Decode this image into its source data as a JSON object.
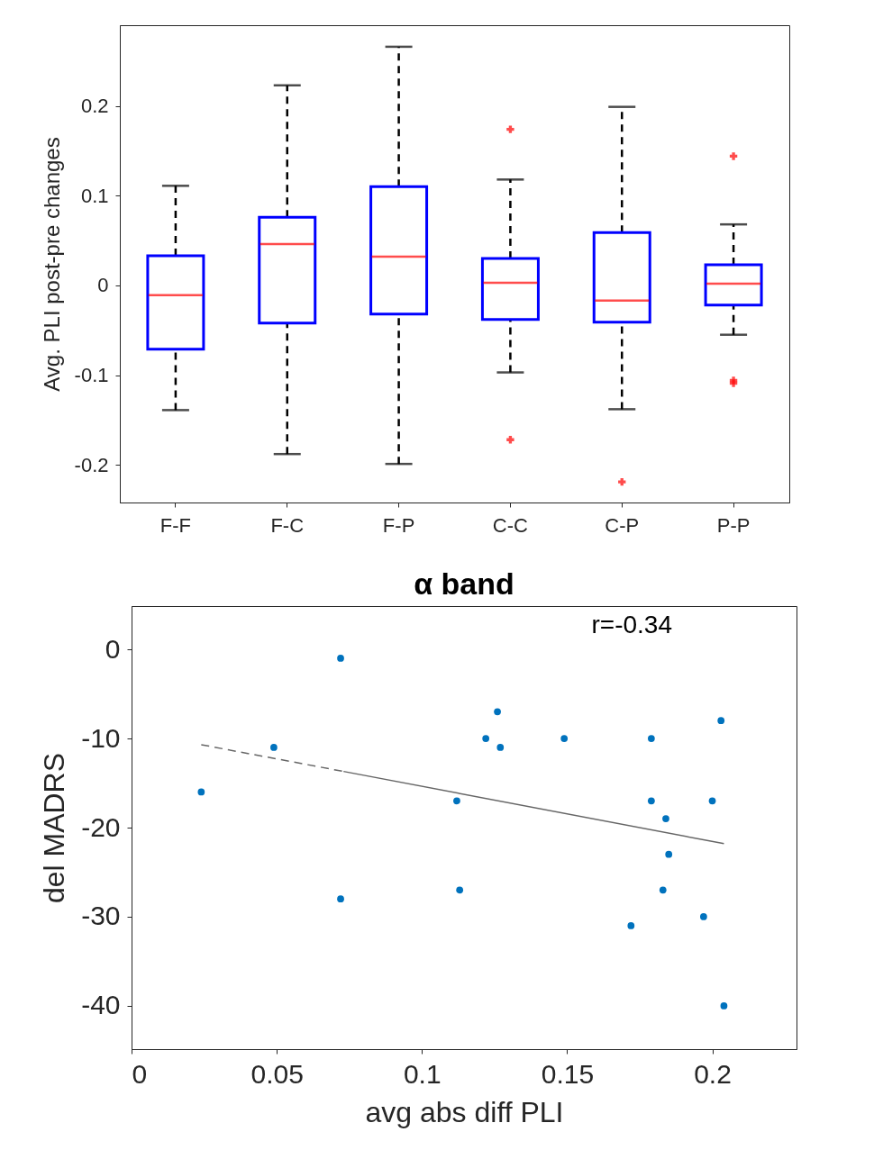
{
  "chart_data": [
    {
      "type": "box",
      "ylabel": "Avg. PLI post-pre changes",
      "categories": [
        "F-F",
        "F-C",
        "F-P",
        "C-C",
        "C-P",
        "P-P"
      ],
      "color": "#0000ff",
      "ylim": [
        -0.242,
        0.29
      ],
      "yticks": [
        -0.2,
        -0.1,
        0,
        0.1,
        0.2
      ],
      "grid": false,
      "boxes": [
        {
          "low": -0.139,
          "q1": -0.071,
          "median": -0.011,
          "q3": 0.033,
          "high": 0.111
        },
        {
          "low": -0.188,
          "q1": -0.042,
          "median": 0.046,
          "q3": 0.076,
          "high": 0.223
        },
        {
          "low": -0.199,
          "q1": -0.032,
          "median": 0.032,
          "q3": 0.11,
          "high": 0.266
        },
        {
          "low": -0.097,
          "q1": -0.038,
          "median": 0.003,
          "q3": 0.03,
          "high": 0.118,
          "outliers": [
            0.174,
            -0.172
          ]
        },
        {
          "low": -0.138,
          "q1": -0.041,
          "median": -0.017,
          "q3": 0.059,
          "high": 0.199,
          "outliers": [
            -0.219
          ]
        },
        {
          "low": -0.055,
          "q1": -0.022,
          "median": 0.002,
          "q3": 0.023,
          "high": 0.068,
          "outliers": [
            0.144,
            -0.106,
            -0.109
          ]
        }
      ]
    },
    {
      "type": "scatter",
      "title": "α band",
      "xlabel": "avg abs diff PLI",
      "ylabel": "del MADRS",
      "annotations": [
        "r=-0.34"
      ],
      "xlim": [
        0,
        0.229
      ],
      "xticks": [
        0,
        0.05,
        0.1,
        0.15,
        0.2
      ],
      "ylim": [
        -44.85,
        4.85
      ],
      "yticks": [
        -40,
        -30,
        -20,
        -10,
        0
      ],
      "grid": false,
      "series": [
        {
          "type": "scatter",
          "marker": "circle",
          "color": "#0072bd",
          "x": [
            0.024,
            0.049,
            0.072,
            0.072,
            0.112,
            0.113,
            0.122,
            0.126,
            0.127,
            0.149,
            0.172,
            0.179,
            0.179,
            0.184,
            0.183,
            0.185,
            0.197,
            0.2,
            0.203,
            0.204
          ],
          "values": [
            -16,
            -11,
            -1,
            -28,
            -17,
            -27,
            -10,
            -7,
            -11,
            -10,
            -31,
            -10,
            -17,
            -19,
            -27,
            -23,
            -30,
            -17,
            -8,
            -40
          ]
        },
        {
          "type": "line",
          "marker": "none",
          "color": "#666666",
          "line_style": "dashed",
          "x": [
            0.024,
            0.073
          ],
          "values": [
            -10.7,
            -13.7
          ]
        },
        {
          "type": "line",
          "marker": "none",
          "color": "#666666",
          "line_style": "solid",
          "x": [
            0.073,
            0.204
          ],
          "values": [
            -13.7,
            -21.8
          ]
        }
      ]
    }
  ]
}
